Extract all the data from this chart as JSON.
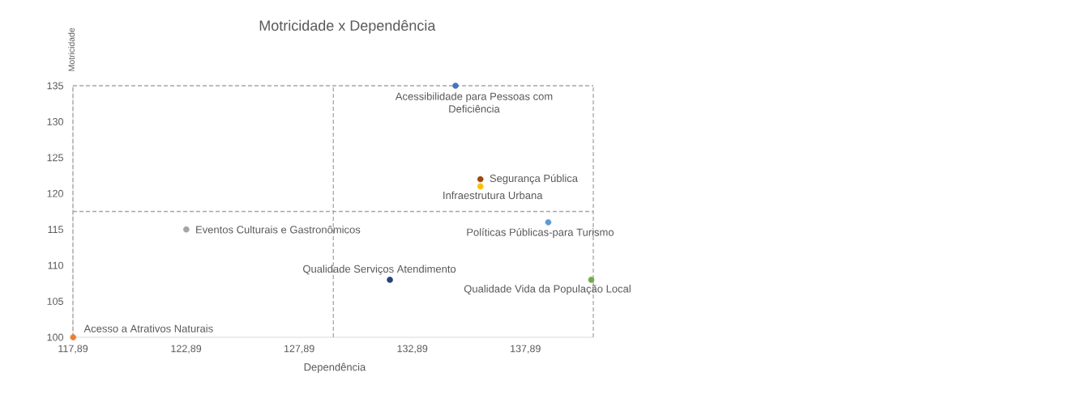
{
  "chart_data": {
    "type": "scatter",
    "title": "Motricidade x Dependência",
    "xlabel": "Dependência",
    "ylabel": "Motricidade",
    "xlim": [
      117.89,
      140.89
    ],
    "ylim": [
      100,
      135
    ],
    "xticks": [
      {
        "value": 117.89,
        "label": "117,89"
      },
      {
        "value": 122.89,
        "label": "122,89"
      },
      {
        "value": 127.89,
        "label": "127,89"
      },
      {
        "value": 132.89,
        "label": "132,89"
      },
      {
        "value": 137.89,
        "label": "137,89"
      }
    ],
    "yticks": [
      100,
      105,
      110,
      115,
      120,
      125,
      130,
      135
    ],
    "grid": false,
    "legend": false,
    "marker": "circle",
    "ref_lines": [
      {
        "axis": "x",
        "value": 129.4,
        "color": "#a6a6a6",
        "line_style": "dashed"
      },
      {
        "axis": "y",
        "value": 117.5,
        "color": "#a6a6a6",
        "line_style": "dashed"
      },
      {
        "axis": "y",
        "value": 135,
        "color": "#a6a6a6",
        "line_style": "dashed"
      },
      {
        "axis": "x",
        "value": 140.89,
        "color": "#a6a6a6",
        "line_style": "dashed"
      },
      {
        "axis": "x",
        "value": 117.89,
        "color": "#a6a6a6",
        "line_style": "dashed"
      }
    ],
    "series": [
      {
        "name": "Acessibilidade para Pessoas com Deficiência",
        "color": "#4472c4",
        "x": [
          134.8
        ],
        "values": [
          135
        ]
      },
      {
        "name": "Segurança Pública",
        "color": "#9e480e",
        "x": [
          135.9
        ],
        "values": [
          122
        ]
      },
      {
        "name": "Infraestrutura Urbana",
        "color": "#ffc000",
        "x": [
          135.9
        ],
        "values": [
          121
        ]
      },
      {
        "name": "Políticas Públicas-para Turismo",
        "color": "#5b9bd5",
        "x": [
          138.9
        ],
        "values": [
          116
        ]
      },
      {
        "name": "Eventos Culturais e Gastronômicos",
        "color": "#a5a5a5",
        "x": [
          122.9
        ],
        "values": [
          115
        ]
      },
      {
        "name": "Qualidade Serviços Atendimento",
        "color": "#264478",
        "x": [
          131.9
        ],
        "values": [
          108
        ]
      },
      {
        "name": "Qualidade Vida da População Local",
        "color": "#70ad47",
        "x": [
          140.8
        ],
        "values": [
          108
        ]
      },
      {
        "name": "Acesso a Atrativos Naturais",
        "color": "#ed7d31",
        "x": [
          117.9
        ],
        "values": [
          100
        ]
      }
    ]
  }
}
